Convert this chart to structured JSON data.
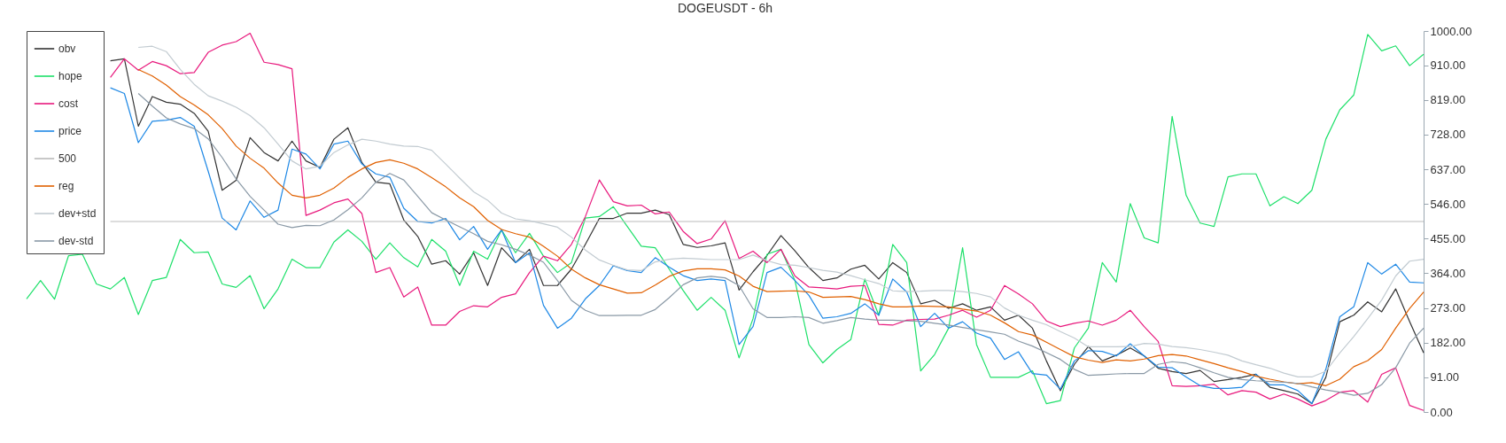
{
  "chart_data": {
    "type": "line",
    "title": "DOGEUSDT - 6h",
    "categories": [
      null,
      null,
      null,
      null,
      null,
      null,
      null,
      null,
      null,
      null,
      null,
      null,
      null,
      null,
      null,
      null,
      null,
      null,
      null,
      null,
      null,
      null,
      null,
      null,
      null,
      null,
      null,
      null,
      null,
      null,
      null,
      null,
      null,
      null,
      null,
      null,
      null,
      null,
      null,
      null,
      null,
      null,
      null,
      null,
      null,
      null,
      null,
      null,
      null,
      null,
      null,
      null,
      null,
      null,
      null,
      null,
      null,
      null,
      null,
      null,
      null,
      null,
      null,
      null,
      null,
      null,
      null,
      null,
      null,
      null,
      null,
      null,
      null,
      null,
      null,
      null,
      null,
      null,
      null,
      null,
      null,
      null,
      null,
      null,
      null,
      null,
      null,
      null,
      null,
      null,
      null,
      null,
      null,
      null,
      null,
      null,
      null,
      null,
      null,
      null,
      null
    ],
    "series": [
      {
        "name": "obv",
        "color": "#333333",
        "values": [
          null,
          null,
          null,
          null,
          null,
          null,
          922,
          927,
          750,
          828,
          813,
          808,
          784,
          737,
          582,
          608,
          720,
          681,
          659,
          711,
          659,
          642,
          716,
          746,
          655,
          603,
          599,
          504,
          461,
          388,
          397,
          362,
          418,
          332,
          431,
          392,
          427,
          332,
          332,
          375,
          440,
          508,
          508,
          522,
          522,
          530,
          518,
          440,
          432,
          436,
          444,
          320,
          368,
          411,
          463,
          423,
          379,
          345,
          352,
          375,
          385,
          349,
          392,
          366,
          284,
          293,
          272,
          284,
          267,
          276,
          241,
          254,
          220,
          134,
          56,
          125,
          172,
          134,
          149,
          168,
          147,
          115,
          106,
          101,
          109,
          80,
          85,
          91,
          99,
          65,
          56,
          47,
          22,
          91,
          237,
          254,
          289,
          263,
          323,
          237,
          155
        ]
      },
      {
        "name": "hope",
        "color": "#1ee06a",
        "values": [
          297,
          345,
          296,
          410,
          414,
          336,
          323,
          353,
          256,
          345,
          353,
          453,
          418,
          420,
          336,
          327,
          358,
          271,
          323,
          401,
          379,
          379,
          446,
          478,
          448,
          401,
          444,
          405,
          381,
          453,
          422,
          332,
          422,
          401,
          478,
          418,
          469,
          409,
          366,
          392,
          509,
          513,
          539,
          487,
          435,
          431,
          375,
          319,
          267,
          301,
          267,
          142,
          245,
          414,
          427,
          345,
          177,
          129,
          164,
          190,
          349,
          254,
          440,
          392,
          108,
          151,
          220,
          431,
          177,
          91,
          91,
          91,
          108,
          22,
          30,
          168,
          220,
          392,
          341,
          547,
          457,
          444,
          776,
          569,
          496,
          487,
          617,
          625,
          625,
          541,
          565,
          547,
          582,
          716,
          793,
          832,
          991,
          948,
          961,
          909,
          939
        ]
      },
      {
        "name": "cost",
        "color": "#e8197d",
        "values": [
          null,
          null,
          null,
          null,
          null,
          null,
          878,
          927,
          897,
          920,
          909,
          888,
          891,
          944,
          963,
          972,
          994,
          918,
          912,
          901,
          516,
          530,
          549,
          559,
          521,
          366,
          379,
          302,
          328,
          228,
          228,
          264,
          279,
          276,
          301,
          310,
          366,
          409,
          397,
          440,
          513,
          609,
          552,
          541,
          543,
          520,
          525,
          474,
          442,
          454,
          502,
          403,
          422,
          392,
          427,
          357,
          328,
          326,
          323,
          330,
          332,
          230,
          228,
          241,
          243,
          244,
          254,
          267,
          249,
          267,
          332,
          310,
          284,
          239,
          224,
          233,
          239,
          228,
          241,
          267,
          224,
          185,
          69,
          67,
          69,
          73,
          45,
          56,
          52,
          34,
          47,
          34,
          16,
          30,
          52,
          56,
          26,
          99,
          116,
          17,
          4
        ]
      },
      {
        "name": "price",
        "color": "#1e88e5",
        "values": [
          null,
          null,
          null,
          null,
          null,
          null,
          851,
          836,
          707,
          763,
          766,
          773,
          750,
          632,
          509,
          478,
          554,
          511,
          530,
          690,
          677,
          638,
          703,
          711,
          651,
          625,
          616,
          535,
          500,
          496,
          508,
          452,
          487,
          427,
          478,
          392,
          418,
          280,
          220,
          246,
          297,
          332,
          384,
          371,
          366,
          405,
          380,
          358,
          345,
          349,
          345,
          177,
          224,
          366,
          380,
          345,
          306,
          246,
          250,
          259,
          284,
          254,
          349,
          315,
          224,
          259,
          220,
          237,
          207,
          194,
          138,
          158,
          101,
          97,
          60,
          134,
          161,
          159,
          147,
          179,
          147,
          118,
          116,
          92,
          69,
          62,
          62,
          65,
          99,
          71,
          71,
          56,
          22,
          112,
          250,
          276,
          392,
          362,
          388,
          341,
          339
        ]
      },
      {
        "name": "500",
        "color": "#bbbbbb",
        "values": [
          null,
          null,
          null,
          null,
          null,
          null,
          500,
          500,
          500,
          500,
          500,
          500,
          500,
          500,
          500,
          500,
          500,
          500,
          500,
          500,
          500,
          500,
          500,
          500,
          500,
          500,
          500,
          500,
          500,
          500,
          500,
          500,
          500,
          500,
          500,
          500,
          500,
          500,
          500,
          500,
          500,
          500,
          500,
          500,
          500,
          500,
          500,
          500,
          500,
          500,
          500,
          500,
          500,
          500,
          500,
          500,
          500,
          500,
          500,
          500,
          500,
          500,
          500,
          500,
          500,
          500,
          500,
          500,
          500,
          500,
          500,
          500,
          500,
          500,
          500,
          500,
          500,
          500,
          500,
          500,
          500,
          500,
          500,
          500,
          500,
          500,
          500,
          500,
          500,
          500,
          500,
          500,
          500,
          500,
          500,
          500,
          500,
          500,
          500,
          500,
          500
        ]
      },
      {
        "name": "reg",
        "color": "#e06000",
        "values": [
          null,
          null,
          null,
          null,
          null,
          null,
          null,
          null,
          899,
          882,
          858,
          828,
          806,
          780,
          744,
          698,
          666,
          640,
          601,
          569,
          562,
          569,
          588,
          616,
          638,
          655,
          662,
          653,
          638,
          615,
          591,
          562,
          539,
          503,
          479,
          468,
          459,
          435,
          409,
          375,
          352,
          334,
          323,
          312,
          313,
          333,
          356,
          370,
          376,
          376,
          373,
          357,
          330,
          316,
          317,
          318,
          315,
          301,
          302,
          303,
          295,
          284,
          276,
          276,
          278,
          277,
          276,
          270,
          265,
          254,
          234,
          211,
          202,
          183,
          164,
          145,
          136,
          130,
          137,
          134,
          139,
          148,
          151,
          147,
          137,
          127,
          116,
          106,
          94,
          86,
          79,
          74,
          77,
          69,
          86,
          119,
          135,
          164,
          220,
          272,
          315
        ]
      },
      {
        "name": "dev+std",
        "color": "#c2cbd1",
        "values": [
          null,
          null,
          null,
          null,
          null,
          null,
          null,
          null,
          957,
          960,
          946,
          899,
          860,
          830,
          816,
          800,
          778,
          746,
          703,
          659,
          638,
          645,
          681,
          701,
          716,
          711,
          703,
          698,
          697,
          687,
          651,
          614,
          578,
          556,
          522,
          507,
          502,
          494,
          485,
          459,
          425,
          399,
          385,
          373,
          371,
          394,
          401,
          404,
          402,
          400,
          400,
          400,
          412,
          397,
          387,
          385,
          379,
          372,
          367,
          358,
          347,
          337,
          318,
          316,
          317,
          319,
          319,
          316,
          311,
          302,
          273,
          254,
          241,
          229,
          211,
          194,
          171,
          171,
          171,
          172,
          180,
          178,
          172,
          169,
          164,
          157,
          149,
          134,
          124,
          115,
          102,
          92,
          92,
          107,
          155,
          198,
          245,
          294,
          357,
          396,
          401
        ]
      },
      {
        "name": "dev-std",
        "color": "#8a99a6",
        "values": [
          null,
          null,
          null,
          null,
          null,
          null,
          null,
          null,
          836,
          803,
          772,
          756,
          744,
          717,
          668,
          612,
          566,
          530,
          493,
          484,
          490,
          489,
          504,
          531,
          562,
          603,
          626,
          609,
          566,
          523,
          504,
          486,
          468,
          448,
          439,
          427,
          412,
          393,
          345,
          293,
          267,
          253,
          253,
          254,
          254,
          269,
          300,
          334,
          352,
          356,
          352,
          332,
          271,
          248,
          248,
          250,
          248,
          233,
          240,
          248,
          244,
          241,
          241,
          239,
          238,
          233,
          228,
          222,
          216,
          210,
          204,
          186,
          173,
          156,
          138,
          112,
          96,
          98,
          100,
          101,
          101,
          125,
          132,
          128,
          116,
          103,
          91,
          85,
          82,
          80,
          78,
          75,
          66,
          58,
          52,
          44,
          49,
          72,
          116,
          181,
          220
        ]
      }
    ],
    "ylim": [
      0,
      1000
    ],
    "yticks": [
      {
        "value": 0,
        "label": "0.00"
      },
      {
        "value": 91,
        "label": "91.00"
      },
      {
        "value": 182,
        "label": "182.00"
      },
      {
        "value": 273,
        "label": "273.00"
      },
      {
        "value": 364,
        "label": "364.00"
      },
      {
        "value": 455,
        "label": "455.00"
      },
      {
        "value": 546,
        "label": "546.00"
      },
      {
        "value": 637,
        "label": "637.00"
      },
      {
        "value": 728,
        "label": "728.00"
      },
      {
        "value": 819,
        "label": "819.00"
      },
      {
        "value": 910,
        "label": "910.00"
      },
      {
        "value": 1000,
        "label": "1000.00"
      }
    ],
    "tick_labels": "y",
    "grid": false,
    "legend": "top left"
  }
}
